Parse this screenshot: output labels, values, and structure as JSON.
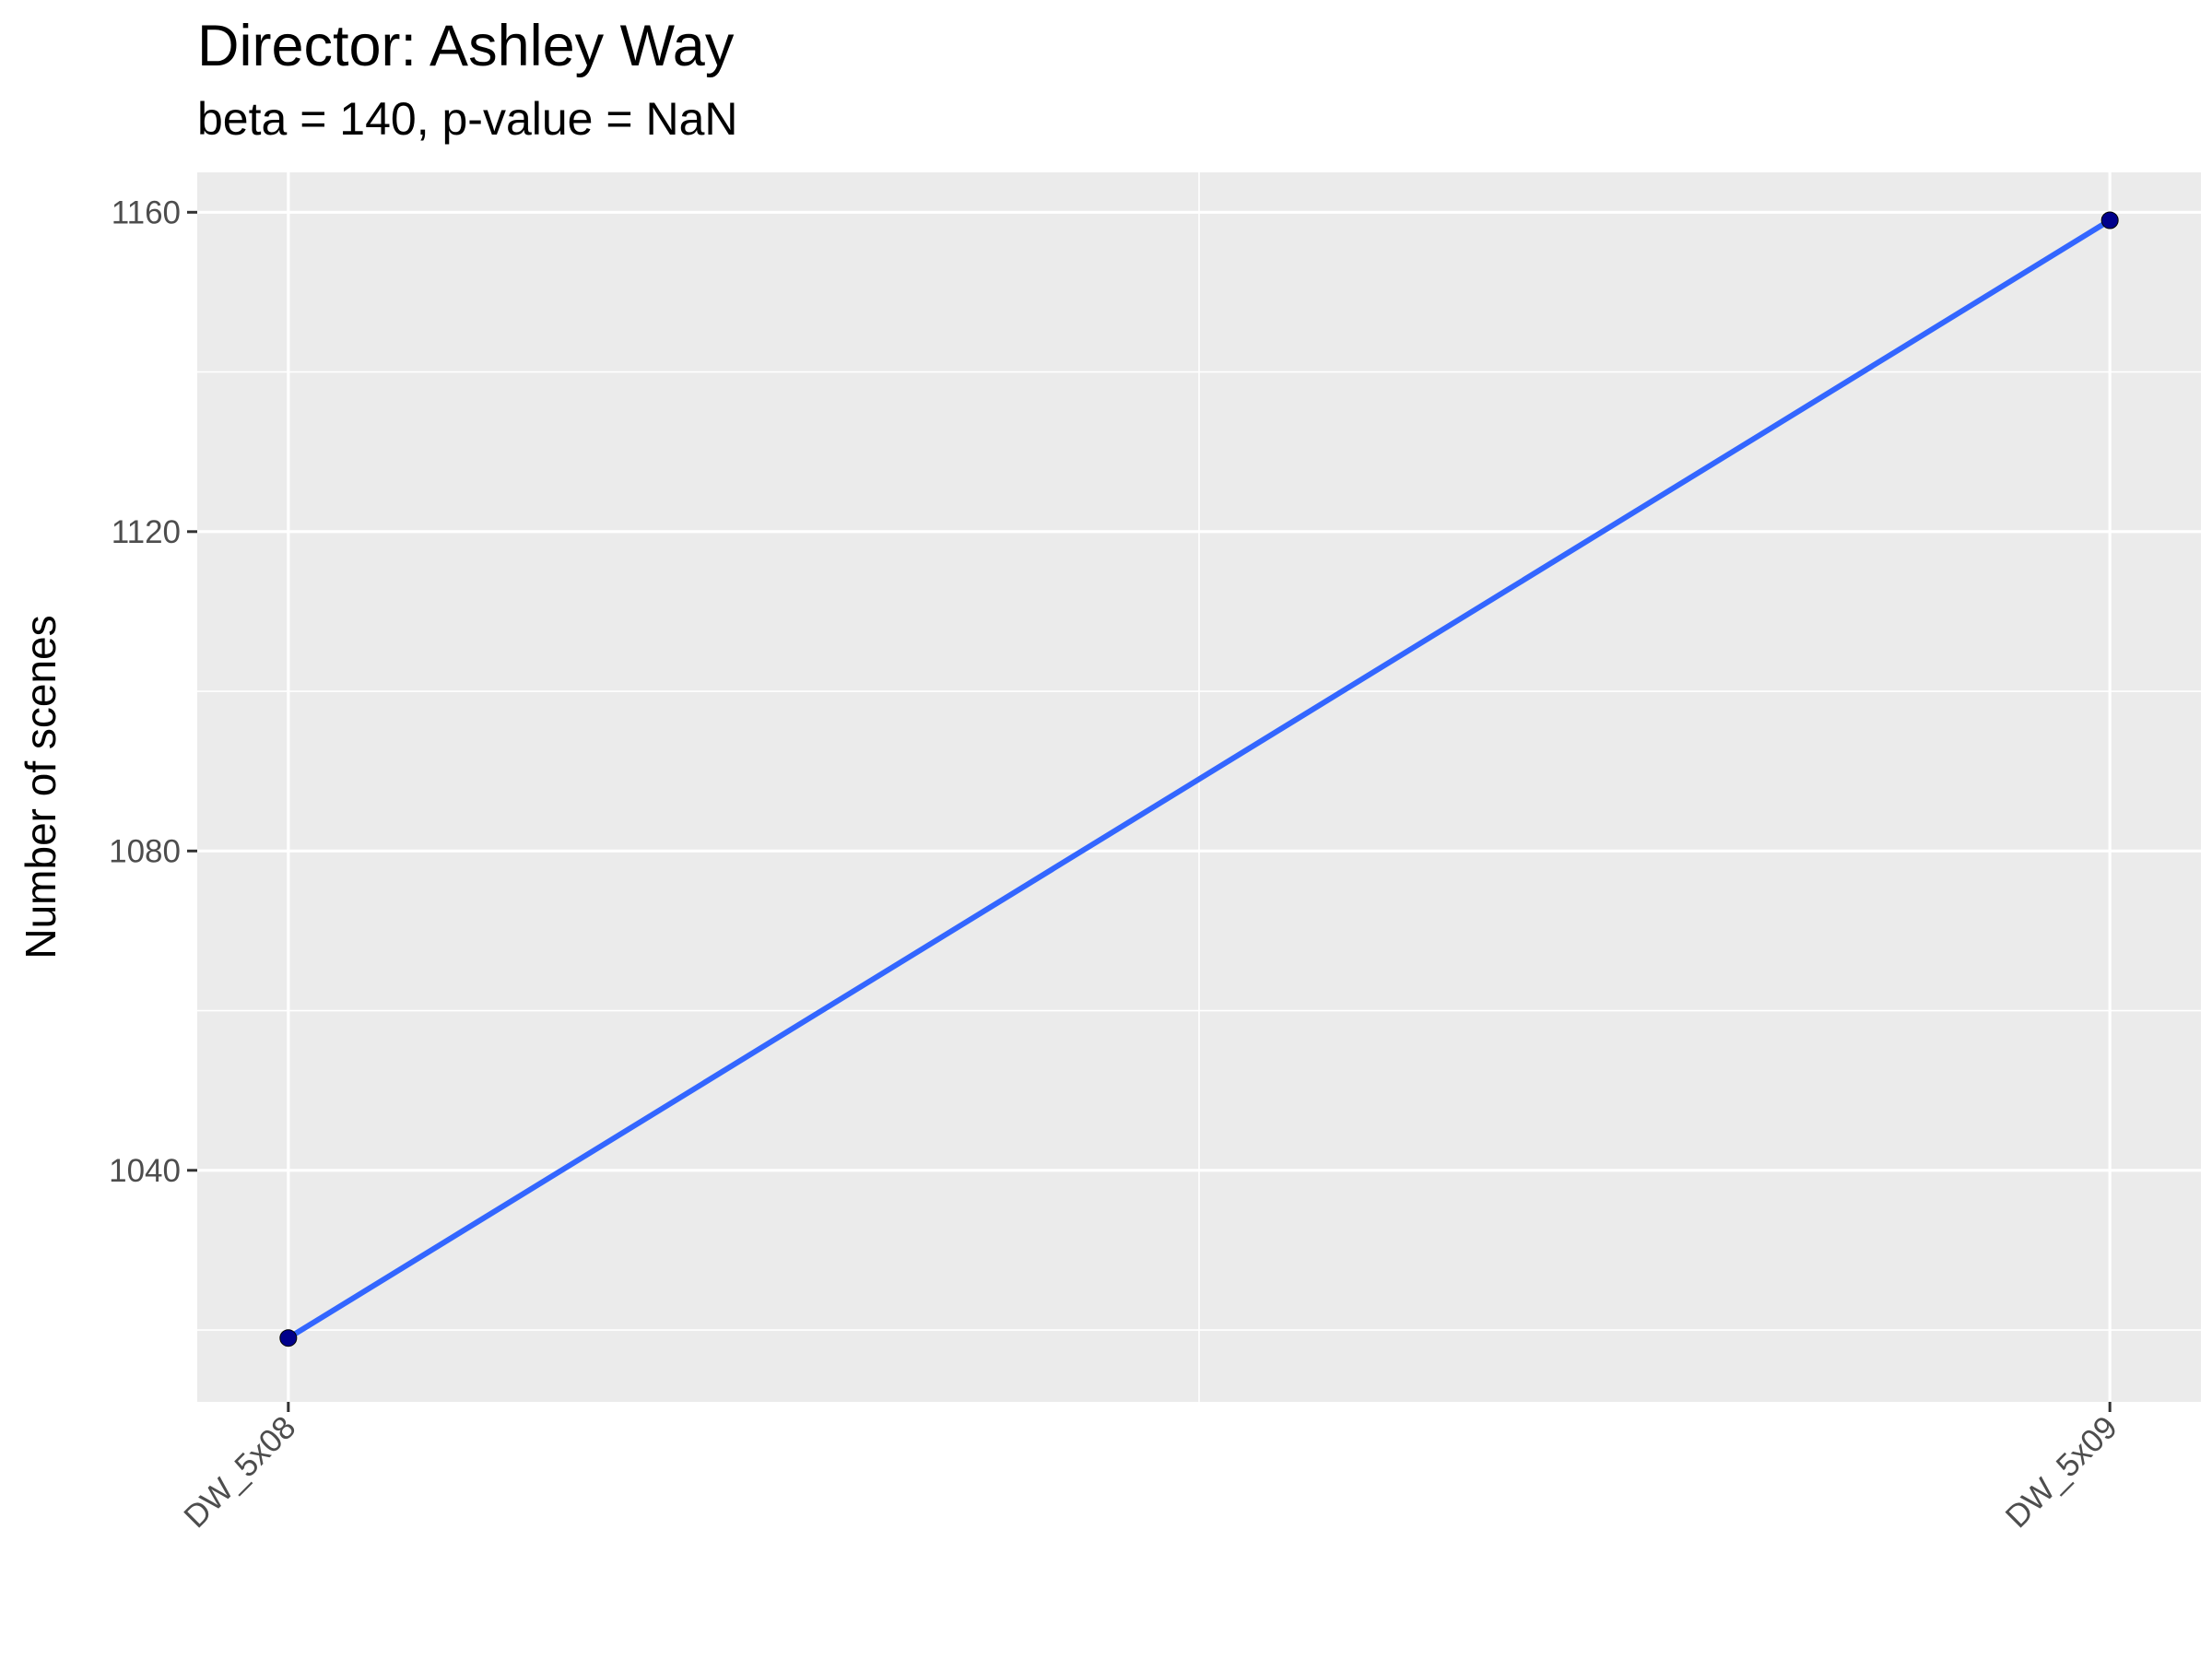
{
  "chart_data": {
    "type": "line",
    "title": "Director: Ashley Way",
    "subtitle": "beta = 140, p-value = NaN",
    "xlabel": "",
    "ylabel": "Number of scenes",
    "categories": [
      "DW_5x08",
      "DW_5x09"
    ],
    "values": [
      1019,
      1159
    ],
    "ylim": [
      1011,
      1165
    ],
    "yticks": [
      1040,
      1080,
      1120,
      1160
    ],
    "grid": true,
    "legend": "none",
    "colors": {
      "panel": "#EBEBEB",
      "grid": "#FFFFFF",
      "line": "#3366FF",
      "point": "#00008B",
      "tick": "#333333"
    }
  }
}
